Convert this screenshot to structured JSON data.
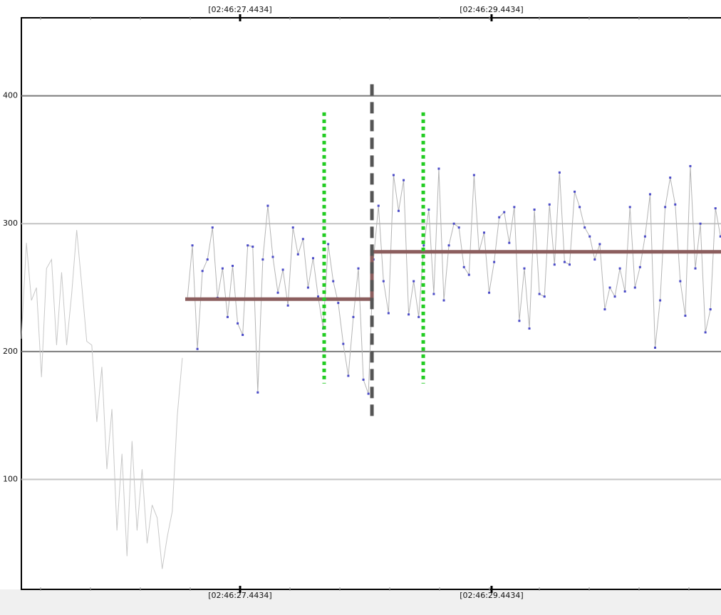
{
  "chart_data": {
    "type": "line",
    "xlim": [
      25.704,
      31.268
    ],
    "ylim": [
      14,
      461
    ],
    "xticks": [
      {
        "value": 27.4434,
        "label": "[02:46:27.4434]"
      },
      {
        "value": 29.4434,
        "label": "[02:46:29.4434]"
      }
    ],
    "yticks": [
      100,
      200,
      300,
      400
    ],
    "grid": true,
    "grid_colors": [
      "#c4c4c4",
      "#7a7a7a",
      "#c4c4c4",
      "#7a7a7a"
    ],
    "series": [
      {
        "color": "#c8c8c8",
        "markers": false,
        "x": [
          25.704,
          25.744,
          25.784,
          25.824,
          25.864,
          25.904,
          25.944,
          25.984,
          26.024,
          26.064,
          26.104,
          26.144,
          26.184,
          26.224,
          26.264,
          26.304,
          26.344,
          26.384,
          26.424,
          26.464,
          26.504,
          26.544,
          26.584,
          26.624,
          26.664,
          26.704,
          26.744,
          26.784,
          26.824,
          26.864,
          26.904,
          26.944,
          26.984
        ],
        "values": [
          210,
          285,
          240,
          250,
          180,
          265,
          272,
          205,
          262,
          205,
          245,
          295,
          252,
          208,
          205,
          145,
          188,
          108,
          155,
          60,
          120,
          40,
          130,
          60,
          108,
          50,
          80,
          70,
          30,
          55,
          75,
          150,
          195
        ]
      },
      {
        "color": "#b4b4b4",
        "markers": true,
        "marker_color": "#4a4ac8",
        "x": [
          27.024,
          27.064,
          27.104,
          27.144,
          27.184,
          27.224,
          27.264,
          27.304,
          27.344,
          27.384,
          27.424,
          27.464,
          27.504,
          27.544,
          27.584,
          27.624,
          27.664,
          27.704,
          27.744,
          27.784,
          27.824,
          27.864,
          27.904,
          27.944,
          27.984,
          28.024,
          28.064,
          28.104,
          28.144,
          28.184,
          28.224,
          28.264,
          28.304,
          28.344,
          28.384,
          28.424,
          28.464,
          28.504,
          28.544,
          28.584,
          28.624,
          28.664,
          28.704,
          28.744,
          28.784,
          28.824,
          28.864,
          28.904,
          28.944,
          28.984,
          29.024,
          29.064,
          29.104,
          29.144,
          29.184,
          29.224,
          29.264,
          29.304,
          29.344,
          29.384,
          29.424,
          29.464,
          29.504,
          29.544,
          29.584,
          29.624,
          29.664,
          29.704,
          29.744,
          29.784,
          29.824,
          29.864,
          29.904,
          29.944,
          29.984,
          30.024,
          30.064,
          30.104,
          30.144,
          30.184,
          30.224,
          30.264,
          30.304,
          30.344,
          30.384,
          30.424,
          30.464,
          30.504,
          30.544,
          30.584,
          30.624,
          30.664,
          30.704,
          30.744,
          30.784,
          30.824,
          30.864,
          30.904,
          30.944,
          30.984,
          31.024,
          31.064,
          31.104,
          31.144,
          31.184,
          31.224,
          31.264
        ],
        "values": [
          241,
          283,
          202,
          263,
          272,
          297,
          242,
          265,
          227,
          267,
          222,
          213,
          283,
          282,
          168,
          272,
          314,
          274,
          246,
          264,
          236,
          297,
          276,
          288,
          250,
          273,
          243,
          218,
          284,
          255,
          238,
          206,
          181,
          227,
          265,
          178,
          167,
          272,
          314,
          255,
          230,
          338,
          310,
          334,
          229,
          255,
          227,
          283,
          311,
          245,
          343,
          240,
          283,
          300,
          297,
          266,
          260,
          338,
          278,
          293,
          246,
          270,
          305,
          309,
          285,
          313,
          224,
          265,
          218,
          311,
          245,
          243,
          315,
          268,
          340,
          270,
          268,
          325,
          313,
          297,
          290,
          272,
          284,
          233,
          250,
          243,
          265,
          247,
          313,
          250,
          266,
          290,
          323,
          203,
          240,
          313,
          336,
          315,
          255,
          228,
          345,
          265,
          300,
          215,
          233,
          312,
          290
        ]
      },
      {
        "color": "#8c5e5e",
        "markers": false,
        "width": 5,
        "x": [
          27.007,
          28.492,
          28.492,
          31.268
        ],
        "values": [
          241,
          241,
          278,
          278
        ]
      }
    ],
    "vlines": [
      {
        "x": 28.492,
        "values": [
          409,
          149
        ],
        "color": "#555555",
        "dash": "16 9"
      },
      {
        "x": 28.112,
        "values": [
          387,
          175
        ],
        "color": "#22cc22",
        "dash": "5 5"
      },
      {
        "x": 28.9,
        "values": [
          387,
          175
        ],
        "color": "#22cc22",
        "dash": "5 5"
      }
    ]
  }
}
